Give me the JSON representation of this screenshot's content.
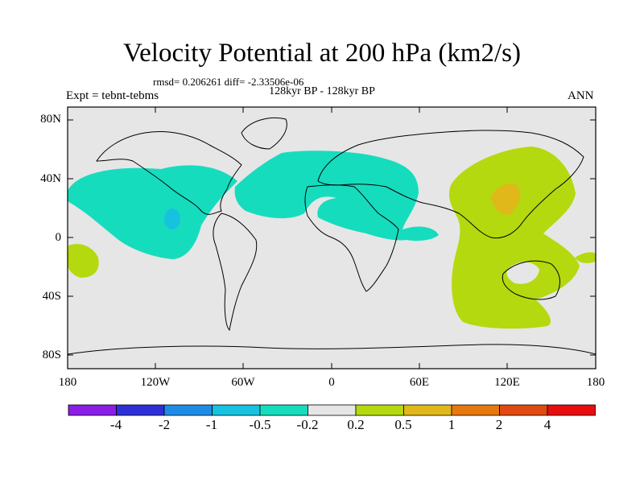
{
  "header": {
    "title": "Velocity Potential at 200 hPa (km2/s)",
    "stats": "rmsd= 0.206261 diff= -2.33506e-06",
    "subtitle": "128kyr BP - 128kyr BP",
    "left_label": "Expt = tebnt-tebms",
    "right_label": "ANN"
  },
  "axes": {
    "y_ticks": [
      "80N",
      "40N",
      "0",
      "40S",
      "80S"
    ],
    "x_ticks": [
      "180",
      "120W",
      "60W",
      "0",
      "60E",
      "120E",
      "180"
    ]
  },
  "colorbar": {
    "labels": [
      "-4",
      "-2",
      "-1",
      "-0.5",
      "-0.2",
      "0.2",
      "0.5",
      "1",
      "2",
      "4"
    ],
    "colors": [
      "#8a1ee6",
      "#2f2fd8",
      "#1e8ce6",
      "#16c2e0",
      "#16dcbe",
      "#e6e6e6",
      "#b4d90e",
      "#e0b81a",
      "#e6780e",
      "#e04a10",
      "#e60e0e"
    ]
  },
  "map": {
    "background_color": "#e6e6e6",
    "negative_fill": "#16dcbe",
    "negative_core_fill": "#16c2e0",
    "positive_fill": "#b4d90e",
    "positive_core_fill": "#e0b81a"
  }
}
